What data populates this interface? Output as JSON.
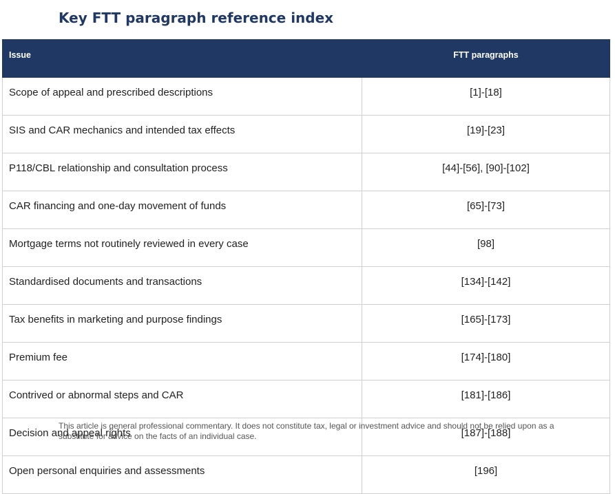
{
  "title": "Key FTT paragraph reference index",
  "table": {
    "headers": {
      "issue": "Issue",
      "paragraphs": "FTT paragraphs"
    },
    "rows": [
      {
        "issue": "Scope of appeal and prescribed descriptions",
        "paragraphs": "[1]-[18]"
      },
      {
        "issue": "SIS and CAR mechanics and intended tax effects",
        "paragraphs": "[19]-[23]"
      },
      {
        "issue": "P118/CBL relationship and consultation process",
        "paragraphs": "[44]-[56], [90]-[102]"
      },
      {
        "issue": "CAR financing and one-day movement of funds",
        "paragraphs": "[65]-[73]"
      },
      {
        "issue": "Mortgage terms not routinely reviewed in every case",
        "paragraphs": "[98]"
      },
      {
        "issue": "Standardised documents and transactions",
        "paragraphs": "[134]-[142]"
      },
      {
        "issue": "Tax benefits in marketing and purpose findings",
        "paragraphs": "[165]-[173]"
      },
      {
        "issue": "Premium fee",
        "paragraphs": "[174]-[180]"
      },
      {
        "issue": "Contrived or abnormal steps and CAR",
        "paragraphs": "[181]-[186]"
      },
      {
        "issue": "Decision and appeal rights",
        "paragraphs": "[187]-[188]"
      },
      {
        "issue": "Open personal enquiries and assessments",
        "paragraphs": "[196]"
      }
    ]
  },
  "disclaimer": "This article is general professional commentary. It does not constitute tax, legal or investment advice and should not be relied upon as a substitute for advice on the facts of an individual case.",
  "colors": {
    "header_bg": "#1f3864",
    "title": "#1f3864",
    "border": "#cfcfcf"
  }
}
